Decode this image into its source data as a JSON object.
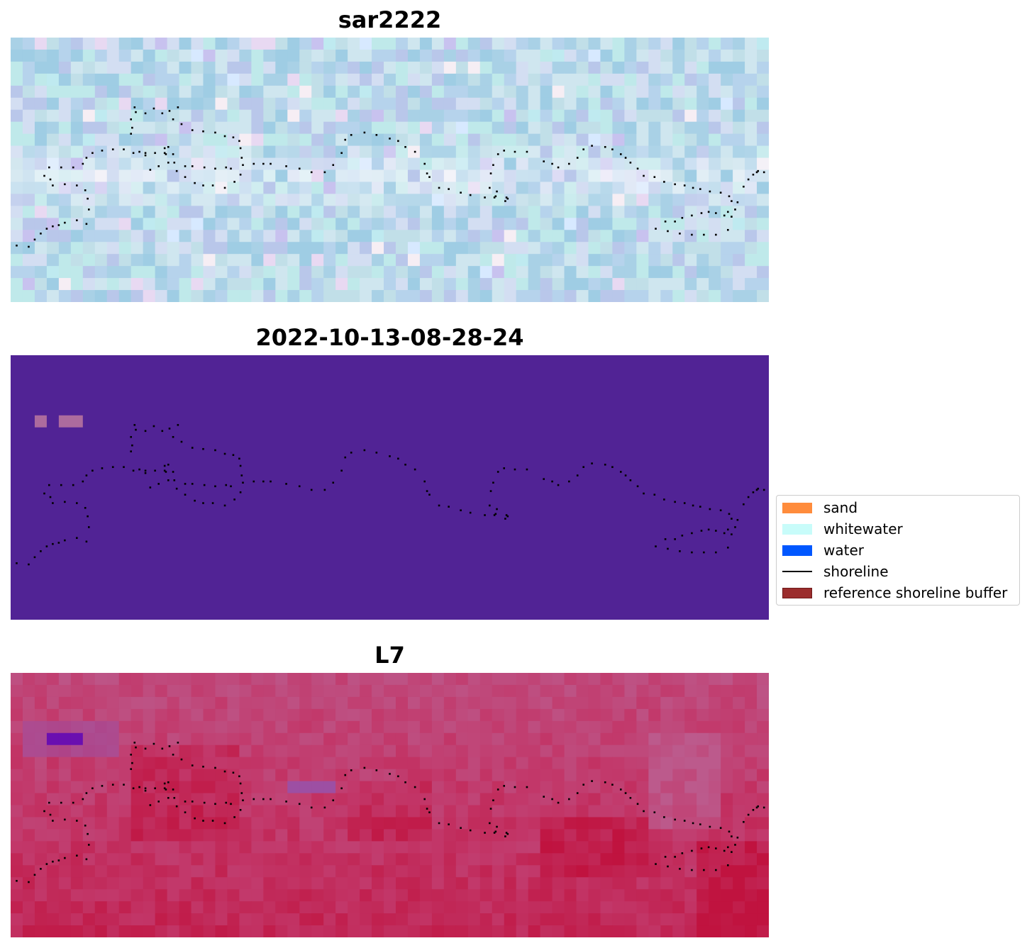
{
  "chart_data": [
    {
      "type": "heatmap",
      "title": "sar2222",
      "grid": false,
      "cols": 63,
      "rows": 22,
      "colors": {
        "base": [
          "#a9d1e6",
          "#b6d3ec",
          "#c1dfe8",
          "#b9c7ea",
          "#cfe6ef",
          "#9fcde4",
          "#d3def2",
          "#bfe9ea"
        ],
        "accents": [
          "#e8d9f2",
          "#d7e9ff",
          "#f6eef4",
          "#bfeaf0",
          "#c8c2ef"
        ],
        "bright_band": "#f1f5fb"
      },
      "legend_ref": true
    },
    {
      "type": "heatmap",
      "title": "2022-10-13-08-28-24",
      "grid": false,
      "colors": {
        "background": "#512395",
        "patch": "#ac6b9e"
      },
      "patches": [
        {
          "col": 2,
          "row": 5,
          "w": 1,
          "h": 1
        },
        {
          "col": 4,
          "row": 5,
          "w": 2,
          "h": 1
        }
      ],
      "cols": 63,
      "rows": 22
    },
    {
      "type": "heatmap",
      "title": "L7",
      "grid": false,
      "cols": 63,
      "rows": 22,
      "colors": {
        "light": "#bc5a8c",
        "mid": "#c2386a",
        "deep": "#c0133f",
        "purple": "#6a0fb0",
        "violet": "#9d4fa3"
      }
    }
  ],
  "shoreline_points": [
    [
      0.5,
      17.3
    ],
    [
      1.5,
      17.4
    ],
    [
      2,
      16.8
    ],
    [
      2.5,
      16.3
    ],
    [
      3,
      15.9
    ],
    [
      3.5,
      15.7
    ],
    [
      4,
      15.6
    ],
    [
      4.5,
      15.4
    ],
    [
      5.5,
      15.2
    ],
    [
      6.3,
      15.5
    ],
    [
      6.5,
      14.3
    ],
    [
      6.4,
      13.4
    ],
    [
      6.2,
      12.7
    ],
    [
      5.5,
      12.3
    ],
    [
      4.5,
      12.2
    ],
    [
      3.5,
      12.3
    ],
    [
      3.3,
      11.8
    ],
    [
      2.8,
      11.5
    ],
    [
      3.2,
      10.8
    ],
    [
      4.2,
      10.8
    ],
    [
      5.2,
      10.8
    ],
    [
      6,
      10.5
    ],
    [
      6.3,
      10.0
    ],
    [
      6.8,
      9.6
    ],
    [
      7.6,
      9.4
    ],
    [
      8.5,
      9.3
    ],
    [
      9.4,
      9.3
    ],
    [
      10.2,
      9.6
    ],
    [
      10.7,
      9.5
    ],
    [
      11.2,
      9.6
    ],
    [
      12,
      9.6
    ],
    [
      12.9,
      9.7
    ],
    [
      13.5,
      9.7
    ],
    [
      13.1,
      9.1
    ],
    [
      12.8,
      9.6
    ],
    [
      12.8,
      9.2
    ],
    [
      13.6,
      10.4
    ],
    [
      13.8,
      11.1
    ],
    [
      14.5,
      11.6
    ],
    [
      15.3,
      12.1
    ],
    [
      16,
      12.3
    ],
    [
      16.8,
      12.3
    ],
    [
      17.8,
      12.5
    ],
    [
      18.6,
      12.0
    ],
    [
      19.1,
      11.4
    ],
    [
      19.3,
      10.6
    ],
    [
      19.2,
      10.0
    ],
    [
      19.1,
      9.2
    ],
    [
      19.0,
      8.6
    ],
    [
      18.5,
      8.3
    ],
    [
      17.8,
      8.2
    ],
    [
      17,
      7.9
    ],
    [
      16,
      7.8
    ],
    [
      15.1,
      7.7
    ],
    [
      14.2,
      7.2
    ],
    [
      13.5,
      6.8
    ],
    [
      13.9,
      5.8
    ],
    [
      13.2,
      6.1
    ],
    [
      12.6,
      6.3
    ],
    [
      11.9,
      5.9
    ],
    [
      11.2,
      6.3
    ],
    [
      10.4,
      6.2
    ],
    [
      10.3,
      5.8
    ],
    [
      10.0,
      6.8
    ],
    [
      10.1,
      7.5
    ],
    [
      10.0,
      8.0
    ],
    [
      11.2,
      9.8
    ],
    [
      11.6,
      11.0
    ],
    [
      12.3,
      10.7
    ],
    [
      13.1,
      10.4
    ],
    [
      14.5,
      10.7
    ],
    [
      15.1,
      10.7
    ],
    [
      16.1,
      10.8
    ],
    [
      17,
      10.9
    ],
    [
      17.9,
      10.8
    ],
    [
      18.3,
      10.9
    ],
    [
      20.2,
      10.5
    ],
    [
      21,
      10.5
    ],
    [
      21.6,
      10.5
    ],
    [
      22.9,
      10.7
    ],
    [
      24,
      10.9
    ],
    [
      25,
      11.2
    ],
    [
      26.1,
      11.2
    ],
    [
      26.8,
      10.6
    ],
    [
      27.5,
      9.6
    ],
    [
      27.8,
      8.5
    ],
    [
      28.3,
      8.1
    ],
    [
      29.4,
      7.9
    ],
    [
      30.4,
      8.1
    ],
    [
      31.5,
      8.4
    ],
    [
      32.2,
      8.6
    ],
    [
      32.8,
      9.1
    ],
    [
      33.6,
      9.5
    ],
    [
      34.4,
      10.5
    ],
    [
      34.6,
      11.3
    ],
    [
      34.8,
      11.6
    ],
    [
      35.6,
      12.5
    ],
    [
      36.4,
      12.6
    ],
    [
      37.4,
      12.9
    ],
    [
      38.2,
      13.1
    ],
    [
      39.4,
      13.3
    ],
    [
      40.3,
      13.2
    ],
    [
      40.4,
      12.8
    ],
    [
      41.2,
      13.3
    ],
    [
      41.3,
      13.4
    ],
    [
      41.1,
      13.6
    ],
    [
      40.2,
      13.3
    ],
    [
      39.8,
      12.5
    ],
    [
      39.9,
      11.3
    ],
    [
      40.1,
      10.6
    ],
    [
      40.5,
      9.7
    ],
    [
      41.0,
      9.4
    ],
    [
      41.9,
      9.5
    ],
    [
      42.9,
      9.5
    ],
    [
      44.3,
      10.3
    ],
    [
      45,
      10.5
    ],
    [
      45.5,
      10.8
    ],
    [
      46.4,
      10.5
    ],
    [
      47.1,
      10.0
    ],
    [
      47.6,
      9.3
    ],
    [
      48.3,
      9.0
    ],
    [
      49.4,
      9.1
    ],
    [
      50,
      9.3
    ],
    [
      50.7,
      9.7
    ],
    [
      51.1,
      10.0
    ],
    [
      51.5,
      10.4
    ],
    [
      52.1,
      10.9
    ],
    [
      52.6,
      11.5
    ],
    [
      53.5,
      11.6
    ],
    [
      54.3,
      12.0
    ],
    [
      55.2,
      12.2
    ],
    [
      56,
      12.3
    ],
    [
      56.7,
      12.5
    ],
    [
      57.3,
      12.6
    ],
    [
      58.1,
      12.8
    ],
    [
      59,
      12.9
    ],
    [
      59.7,
      13.2
    ],
    [
      59.9,
      13.6
    ],
    [
      59.6,
      14.5
    ],
    [
      59.3,
      14.8
    ],
    [
      58.6,
      14.6
    ],
    [
      58,
      14.5
    ],
    [
      57.4,
      14.6
    ],
    [
      56.6,
      14.8
    ],
    [
      55.8,
      15.0
    ],
    [
      55.2,
      15.3
    ],
    [
      54.4,
      15.3
    ],
    [
      53.6,
      15.9
    ],
    [
      54.6,
      16.1
    ],
    [
      55.6,
      16.3
    ],
    [
      56.6,
      16.4
    ],
    [
      57.6,
      16.4
    ],
    [
      58.6,
      16.4
    ],
    [
      59.6,
      16.0
    ],
    [
      59.9,
      14.9
    ],
    [
      60.2,
      14.3
    ],
    [
      60.4,
      13.7
    ],
    [
      60.9,
      12.4
    ],
    [
      61.3,
      11.8
    ],
    [
      61.7,
      11.4
    ],
    [
      62.1,
      11.1
    ],
    [
      62.6,
      11.2
    ],
    [
      63.1,
      11.3
    ],
    [
      62.0,
      11.2
    ]
  ],
  "legend": {
    "items": [
      {
        "label": "sand",
        "kind": "patch",
        "color": "#ff8c3c"
      },
      {
        "label": "whitewater",
        "kind": "patch",
        "color": "#c8fcfa"
      },
      {
        "label": "water",
        "kind": "patch",
        "color": "#0057ff"
      },
      {
        "label": "shoreline",
        "kind": "line",
        "color": "#000000"
      },
      {
        "label": "reference shoreline buffer",
        "kind": "patch",
        "color": "#9b2d2d",
        "edge": "#6e1a1a"
      }
    ]
  }
}
